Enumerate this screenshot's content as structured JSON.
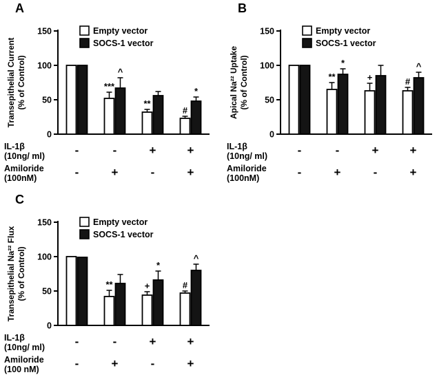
{
  "chart_data": [
    {
      "type": "bar",
      "panel_label": "A",
      "ylabel": [
        "Transepithelial Current",
        "(% of Control)"
      ],
      "ylim": [
        0,
        150
      ],
      "yticks": [
        0,
        50,
        100,
        150
      ],
      "legend_position": "top-inside",
      "grid": false,
      "series": [
        {
          "name": "Empty vector",
          "fill": "#ffffff",
          "values": [
            100,
            52,
            32,
            23
          ],
          "errors": [
            0,
            9,
            4,
            3
          ],
          "annotations": [
            "",
            "***",
            "**",
            "#"
          ]
        },
        {
          "name": "SOCS-1 vector",
          "fill": "#141414",
          "values": [
            100,
            67,
            56,
            48
          ],
          "errors": [
            0,
            15,
            6,
            6
          ],
          "annotations": [
            "",
            "^",
            "",
            "*"
          ]
        }
      ],
      "conditions": [
        {
          "label": "IL-1β",
          "sublabel": "(10ng/ ml)",
          "values": [
            "-",
            "-",
            "+",
            "+"
          ]
        },
        {
          "label": "Amiloride",
          "sublabel": "(100nM)",
          "values": [
            "-",
            "+",
            "-",
            "+"
          ]
        }
      ]
    },
    {
      "type": "bar",
      "panel_label": "B",
      "ylabel": [
        "Apical Na²² Uptake",
        "(% of Control)"
      ],
      "ylim": [
        0,
        150
      ],
      "yticks": [
        0,
        50,
        100,
        150
      ],
      "legend_position": "top-inside",
      "grid": false,
      "series": [
        {
          "name": "Empty vector",
          "fill": "#ffffff",
          "values": [
            100,
            65,
            63,
            63
          ],
          "errors": [
            0,
            10,
            11,
            5
          ],
          "annotations": [
            "",
            "**",
            "+",
            "#"
          ]
        },
        {
          "name": "SOCS-1 vector",
          "fill": "#141414",
          "values": [
            100,
            87,
            85,
            82
          ],
          "errors": [
            0,
            8,
            15,
            8
          ],
          "annotations": [
            "",
            "*",
            "",
            "^"
          ]
        }
      ],
      "conditions": [
        {
          "label": "IL-1β",
          "sublabel": "(10ng/ ml)",
          "values": [
            "-",
            "-",
            "+",
            "+"
          ]
        },
        {
          "label": "Amiloride",
          "sublabel": "(100nM)",
          "values": [
            "-",
            "+",
            "-",
            "+"
          ]
        }
      ]
    },
    {
      "type": "bar",
      "panel_label": "C",
      "ylabel": [
        "Transepithelial Na²² Flux",
        "(% of Control)"
      ],
      "ylim": [
        0,
        150
      ],
      "yticks": [
        0,
        50,
        100,
        150
      ],
      "legend_position": "top-inside",
      "grid": false,
      "series": [
        {
          "name": "Empty vector",
          "fill": "#ffffff",
          "values": [
            100,
            42,
            44,
            47
          ],
          "errors": [
            0,
            9,
            5,
            3
          ],
          "annotations": [
            "",
            "**",
            "+",
            "#"
          ]
        },
        {
          "name": "SOCS-1 vector",
          "fill": "#141414",
          "values": [
            99,
            61,
            66,
            80
          ],
          "errors": [
            0,
            13,
            13,
            9
          ],
          "annotations": [
            "",
            "",
            "*",
            "^"
          ]
        }
      ],
      "conditions": [
        {
          "label": "IL-1β",
          "sublabel": "(10ng/ ml)",
          "values": [
            "-",
            "-",
            "+",
            "+"
          ]
        },
        {
          "label": "Amiloride",
          "sublabel": "(100 nM)",
          "values": [
            "-",
            "+",
            "-",
            "+"
          ]
        }
      ]
    }
  ]
}
